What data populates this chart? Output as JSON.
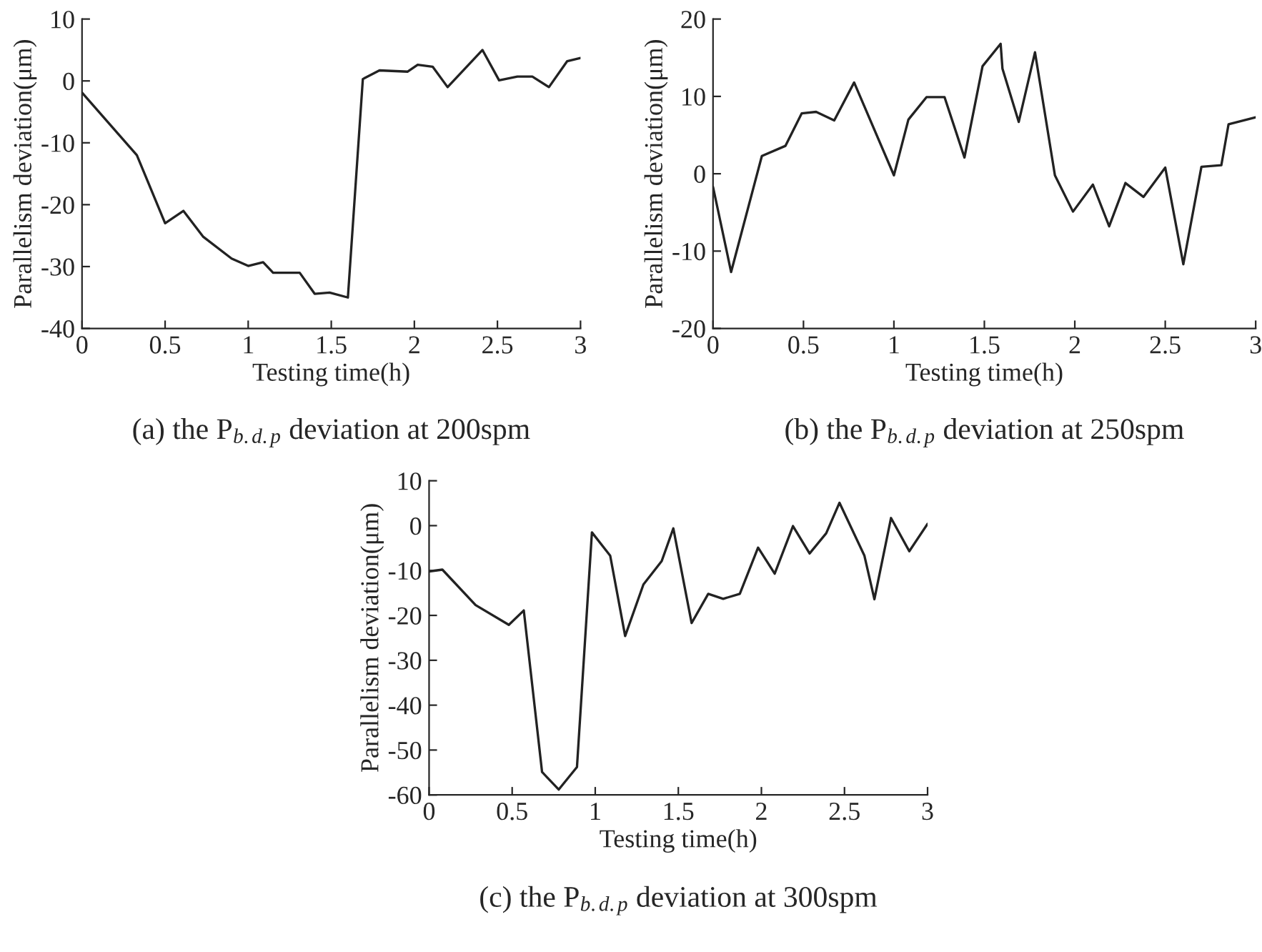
{
  "chart_data": [
    {
      "type": "line",
      "title": "(a) the P$_{b.d.p}$ deviation at 200spm",
      "xlabel": "Testing time(h)",
      "ylabel": "Parallelism deviation(μm)",
      "xlim": [
        0,
        3
      ],
      "ylim": [
        -40,
        10
      ],
      "xticks": [
        0,
        0.5,
        1,
        1.5,
        2,
        2.5,
        3
      ],
      "yticks": [
        -40,
        -30,
        -20,
        -10,
        0,
        10
      ],
      "series": [
        {
          "color": "#222222",
          "x": [
            0,
            0.33,
            0.5,
            0.61,
            0.73,
            0.9,
            1.0,
            1.09,
            1.15,
            1.31,
            1.4,
            1.49,
            1.6,
            1.69,
            1.79,
            1.96,
            2.02,
            2.11,
            2.2,
            2.41,
            2.51,
            2.62,
            2.71,
            2.81,
            2.92,
            3.0
          ],
          "values": [
            -1.9,
            -12,
            -23,
            -21,
            -25.2,
            -28.7,
            -29.9,
            -29.3,
            -31,
            -31,
            -34.4,
            -34.2,
            -35,
            0.3,
            1.7,
            1.5,
            2.6,
            2.3,
            -1,
            5,
            0.1,
            0.7,
            0.7,
            -1,
            3.2,
            3.7
          ]
        }
      ]
    },
    {
      "type": "line",
      "title": "(b) the P$_{b.d.p}$ deviation at 250spm",
      "xlabel": "Testing time(h)",
      "ylabel": "Parallelism deviation(μm)",
      "xlim": [
        0,
        3
      ],
      "ylim": [
        -20,
        20
      ],
      "xticks": [
        0,
        0.5,
        1,
        1.5,
        2,
        2.5,
        3
      ],
      "yticks": [
        -20,
        -10,
        0,
        10,
        20
      ],
      "series": [
        {
          "color": "#222222",
          "x": [
            0,
            0.1,
            0.27,
            0.4,
            0.49,
            0.57,
            0.67,
            0.78,
            1.0,
            1.08,
            1.18,
            1.28,
            1.39,
            1.49,
            1.59,
            1.6,
            1.69,
            1.78,
            1.89,
            1.99,
            2.1,
            2.19,
            2.28,
            2.38,
            2.5,
            2.6,
            2.7,
            2.81,
            2.85,
            3.0
          ],
          "values": [
            -1.7,
            -12.7,
            2.3,
            3.6,
            7.8,
            8,
            6.9,
            11.8,
            -0.2,
            7,
            9.9,
            9.9,
            2.1,
            13.9,
            16.8,
            13.6,
            6.7,
            15.7,
            -0.2,
            -4.9,
            -1.4,
            -6.8,
            -1.2,
            -3,
            0.8,
            -11.7,
            0.9,
            1.1,
            6.4,
            7.3
          ]
        }
      ]
    },
    {
      "type": "line",
      "title": "(c) the P$_{b.d.p}$ deviation at 300spm",
      "xlabel": "Testing time(h)",
      "ylabel": "Parallelism deviation(μm)",
      "xlim": [
        0,
        3
      ],
      "ylim": [
        -60,
        10
      ],
      "xticks": [
        0,
        0.5,
        1,
        1.5,
        2,
        2.5,
        3
      ],
      "yticks": [
        -60,
        -50,
        -40,
        -30,
        -20,
        -10,
        0,
        10
      ],
      "series": [
        {
          "color": "#222222",
          "x": [
            0,
            0.08,
            0.28,
            0.48,
            0.57,
            0.68,
            0.78,
            0.89,
            0.98,
            1.09,
            1.18,
            1.29,
            1.4,
            1.47,
            1.58,
            1.68,
            1.77,
            1.87,
            1.98,
            2.08,
            2.19,
            2.29,
            2.39,
            2.47,
            2.62,
            2.68,
            2.78,
            2.89,
            3.0
          ],
          "values": [
            -10.2,
            -9.8,
            -17.7,
            -22.1,
            -18.9,
            -54.9,
            -58.8,
            -53.8,
            -1.5,
            -6.7,
            -24.6,
            -13.1,
            -7.9,
            -0.6,
            -21.7,
            -15.2,
            -16.3,
            -15.2,
            -4.9,
            -10.7,
            -0.1,
            -6.2,
            -1.7,
            5.1,
            -6.7,
            -16.4,
            1.7,
            -5.7,
            0.4
          ]
        }
      ]
    }
  ]
}
